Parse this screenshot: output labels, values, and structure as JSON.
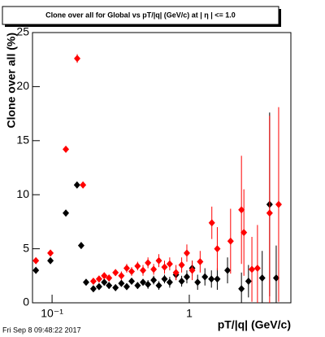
{
  "chart_data": {
    "type": "scatter",
    "title": "Clone  over all for Global vs pT/|q| (GeV/c) at |  η | <= 1.0",
    "x_label": "pT/|q| (GeV/c)",
    "y_label": "Clone  over all (%)",
    "footer": "Fri Sep  8 09:48:22 2017",
    "log_x": true,
    "xlim": [
      0.072,
      5.5
    ],
    "xticks": [
      {
        "value": 0.1,
        "label": "10⁻¹"
      },
      1
    ],
    "ylim": [
      0,
      25
    ],
    "yticks": [
      0,
      5,
      10,
      15,
      20,
      25
    ],
    "series": [
      {
        "color": "#000000",
        "x": [
          0.0762,
          0.0973,
          0.126,
          0.152,
          0.163,
          0.177,
          0.2,
          0.22,
          0.24,
          0.26,
          0.29,
          0.32,
          0.35,
          0.38,
          0.42,
          0.46,
          0.5,
          0.55,
          0.6,
          0.66,
          0.72,
          0.8,
          0.88,
          0.96,
          1.05,
          1.15,
          1.3,
          1.45,
          1.6,
          1.9,
          2.4,
          2.7,
          3.4,
          3.85,
          4.3
        ],
        "values": [
          3.0,
          3.9,
          8.3,
          10.9,
          5.3,
          1.9,
          1.3,
          1.5,
          1.9,
          1.6,
          1.4,
          1.8,
          1.5,
          2.0,
          1.6,
          1.9,
          1.7,
          2.1,
          1.6,
          2.2,
          1.9,
          2.6,
          2.0,
          2.4,
          3.2,
          1.9,
          2.4,
          2.2,
          2.2,
          3.0,
          1.3,
          2.0,
          2.3,
          9.1,
          2.3
        ],
        "errors": [
          0.2,
          0.2,
          0.3,
          0.3,
          0.3,
          0.2,
          0.2,
          0.2,
          0.3,
          0.3,
          0.3,
          0.3,
          0.3,
          0.3,
          0.3,
          0.3,
          0.4,
          0.4,
          0.4,
          0.4,
          0.5,
          0.5,
          0.5,
          0.6,
          0.7,
          0.7,
          0.8,
          0.8,
          1.0,
          1.2,
          1.5,
          1.5,
          2.5,
          8.5,
          3.0
        ]
      },
      {
        "color": "#ff0000",
        "x": [
          0.0762,
          0.0973,
          0.126,
          0.1525,
          0.168,
          0.2,
          0.22,
          0.24,
          0.26,
          0.29,
          0.32,
          0.35,
          0.38,
          0.42,
          0.46,
          0.5,
          0.55,
          0.6,
          0.66,
          0.72,
          0.8,
          0.88,
          0.96,
          1.05,
          1.2,
          1.46,
          1.6,
          2.0,
          2.4,
          2.5,
          2.86,
          3.14,
          3.85,
          4.48
        ],
        "values": [
          3.9,
          4.6,
          14.2,
          22.6,
          10.9,
          2.0,
          2.2,
          2.5,
          2.3,
          2.8,
          2.5,
          3.2,
          2.9,
          3.4,
          3.0,
          3.7,
          3.1,
          3.9,
          3.3,
          3.6,
          2.8,
          3.5,
          4.6,
          3.0,
          3.8,
          7.4,
          5.0,
          5.7,
          8.6,
          6.5,
          3.1,
          3.2,
          8.3,
          9.1
        ],
        "errors": [
          0.2,
          0.2,
          0.3,
          0.4,
          0.3,
          0.2,
          0.3,
          0.3,
          0.3,
          0.3,
          0.4,
          0.4,
          0.4,
          0.4,
          0.5,
          0.5,
          0.5,
          0.6,
          0.6,
          0.6,
          0.7,
          0.7,
          0.8,
          0.9,
          1.0,
          1.5,
          2.0,
          3.0,
          5.0,
          4.0,
          3.0,
          4.0,
          9.0,
          9.0
        ]
      }
    ]
  }
}
